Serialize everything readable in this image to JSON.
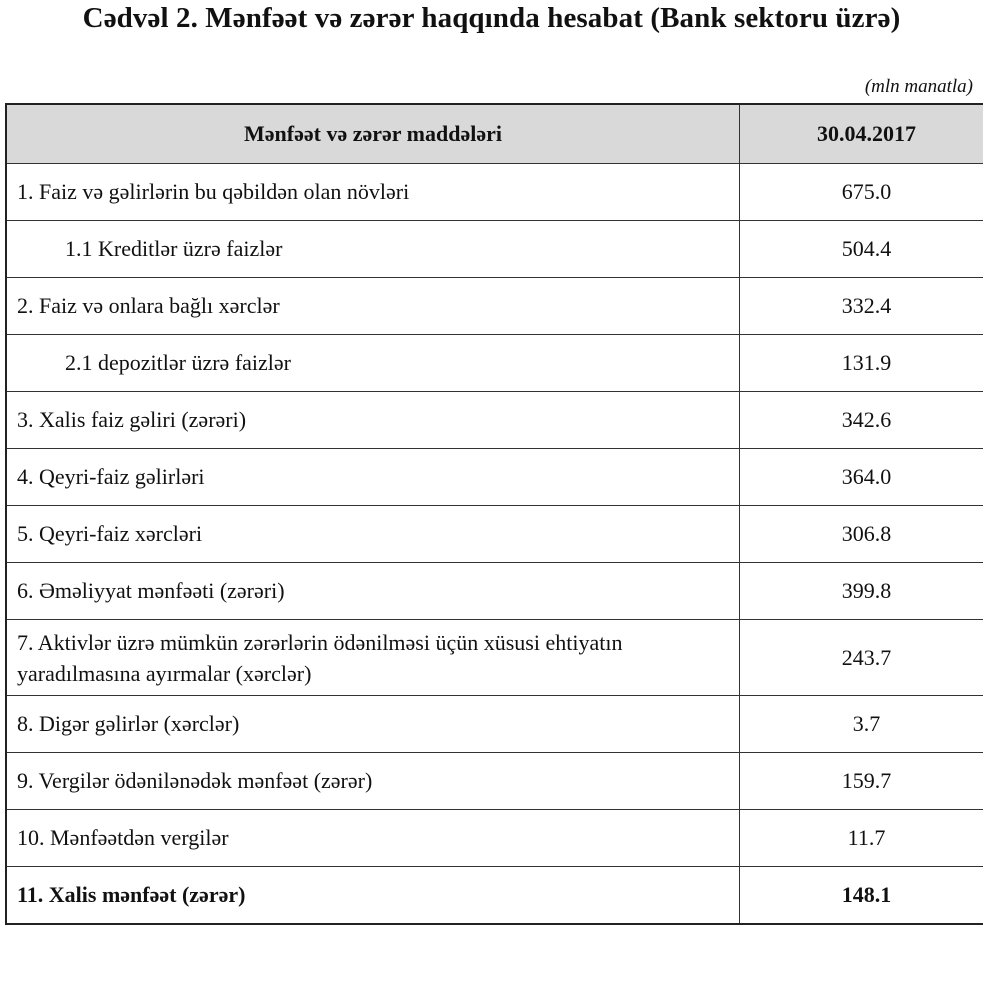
{
  "title": "Cədvəl 2.  Mənfəət və zərər haqqında hesabat (Bank sektoru üzrə)",
  "unit": "(mln manatla)",
  "table": {
    "headers": [
      "Mənfəət və zərər maddələri",
      "30.04.2017"
    ],
    "rows": [
      {
        "label": "1. Faiz və gəlirlərin bu qəbildən olan növləri",
        "value": "675.0"
      },
      {
        "label": "1.1 Kreditlər üzrə faizlər",
        "value": "504.4"
      },
      {
        "label": "2. Faiz və onlara bağlı xərclər",
        "value": "332.4"
      },
      {
        "label": "2.1 depozitlər üzrə faizlər",
        "value": "131.9"
      },
      {
        "label": "3. Xalis faiz gəliri (zərəri)",
        "value": "342.6"
      },
      {
        "label": "4. Qeyri-faiz gəlirləri",
        "value": "364.0"
      },
      {
        "label": "5. Qeyri-faiz xərcləri",
        "value": "306.8"
      },
      {
        "label": "6. Əməliyyat mənfəəti (zərəri)",
        "value": "399.8"
      },
      {
        "label": "7. Aktivlər üzrə mümkün zərərlərin ödənilməsi üçün xüsusi ehtiyatın yaradılmasına ayırmalar (xərclər)",
        "value": "243.7"
      },
      {
        "label": "8. Digər gəlirlər (xərclər)",
        "value": "3.7"
      },
      {
        "label": "9. Vergilər ödənilənədək mənfəət (zərər)",
        "value": "159.7"
      },
      {
        "label": "10. Mənfəətdən vergilər",
        "value": "11.7"
      },
      {
        "label": "11. Xalis mənfəət (zərər)",
        "value": "148.1"
      }
    ]
  }
}
